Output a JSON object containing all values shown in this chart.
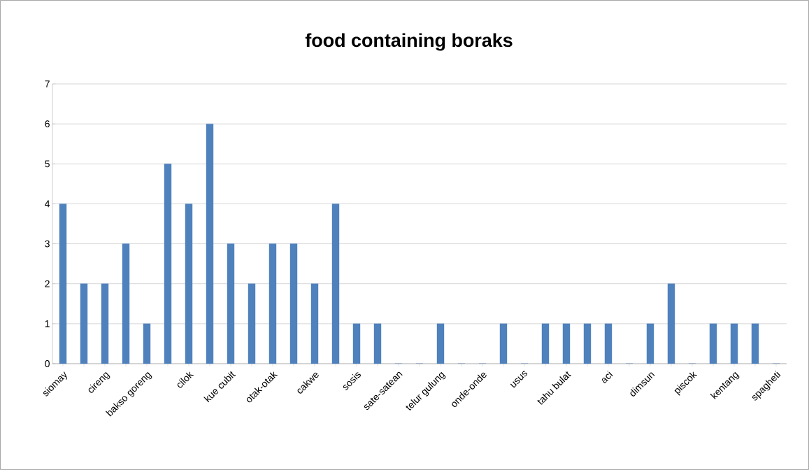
{
  "chart_data": {
    "type": "bar",
    "title": "food containing boraks",
    "categories": [
      "siomay",
      null,
      "cireng",
      null,
      "bakso goreng",
      null,
      "cilok",
      null,
      "kue cubit",
      null,
      "otak-otak",
      null,
      "cakwe",
      null,
      "sosis",
      null,
      "sate-satean",
      null,
      "telur gulung",
      null,
      "onde-onde",
      null,
      "usus",
      null,
      "tahu bulat",
      null,
      "aci",
      null,
      "dimsun",
      null,
      "piscok",
      null,
      "kentang",
      null,
      "spagheti"
    ],
    "values": [
      4,
      2,
      2,
      3,
      1,
      5,
      4,
      6,
      3,
      2,
      3,
      3,
      2,
      4,
      1,
      1,
      0,
      0,
      1,
      0,
      0,
      1,
      0,
      1,
      1,
      1,
      1,
      0,
      1,
      2,
      0,
      1,
      1,
      1,
      0
    ],
    "color": "#4f81bd",
    "ylim": [
      0,
      7
    ],
    "yticks": [
      0,
      1,
      2,
      3,
      4,
      5,
      6,
      7
    ],
    "grid": "y"
  }
}
